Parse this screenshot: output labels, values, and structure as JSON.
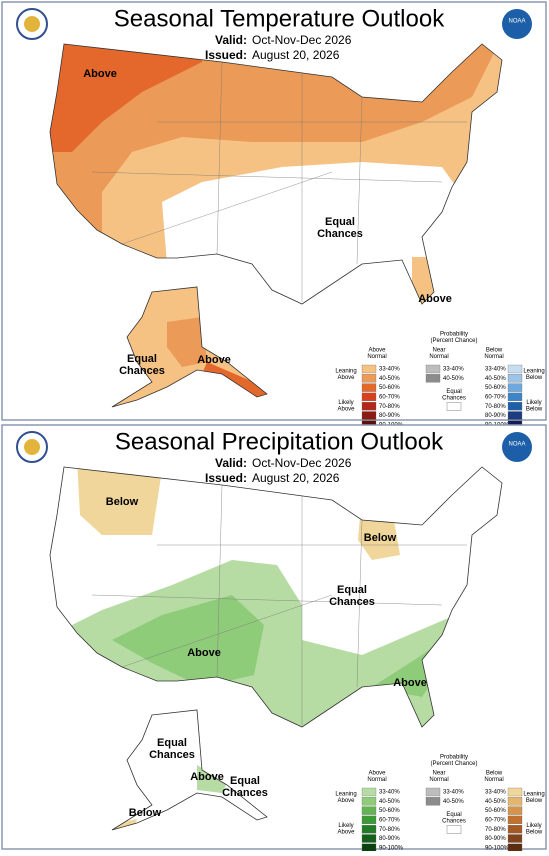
{
  "panels": [
    {
      "title": "Seasonal Temperature Outlook",
      "valid_label": "Valid:",
      "valid": "Oct-Nov-Dec 2026",
      "issued_label": "Issued:",
      "issued": "August 20, 2026",
      "logo_text": "NOAA",
      "map_labels": [
        [
          "Above"
        ],
        [
          "Equal",
          "Chances"
        ],
        [
          "Above"
        ],
        [
          "Equal",
          "Chances"
        ],
        [
          "Above"
        ]
      ],
      "legend": {
        "title": [
          "Probability",
          "(Percent Chance)"
        ],
        "above_header": [
          "Above",
          "Normal"
        ],
        "near_header": [
          "Near",
          "Normal"
        ],
        "below_header": [
          "Below",
          "Normal"
        ],
        "above_ranges": [
          "33-40%",
          "40-50%",
          "50-60%",
          "60-70%",
          "70-80%",
          "80-90%",
          "90-100%"
        ],
        "above_colors": [
          "#f6c283",
          "#eb9a57",
          "#e4682c",
          "#d8401f",
          "#b3261a",
          "#8a1a12",
          "#5c1009"
        ],
        "near_ranges": [
          "33-40%",
          "40-50%"
        ],
        "near_colors": [
          "#bdbdbd",
          "#8c8c8c"
        ],
        "below_ranges": [
          "33-40%",
          "40-50%",
          "50-60%",
          "60-70%",
          "70-80%",
          "80-90%",
          "90-100%"
        ],
        "below_colors": [
          "#c8dcf0",
          "#9dc3e6",
          "#6fa8dc",
          "#3d85c6",
          "#1f5fa8",
          "#1b3c80",
          "#141a5a"
        ],
        "leaning_above": [
          "Leaning",
          "Above"
        ],
        "likely_above": [
          "Likely",
          "Above"
        ],
        "equal_chances": [
          "Equal",
          "Chances"
        ],
        "leaning_below": [
          "Leaning",
          "Below"
        ],
        "likely_below": [
          "Likely",
          "Below"
        ]
      }
    },
    {
      "title": "Seasonal Precipitation Outlook",
      "valid_label": "Valid:",
      "valid": "Oct-Nov-Dec 2026",
      "issued_label": "Issued:",
      "issued": "August 20, 2026",
      "logo_text": "NOAA",
      "map_labels": [
        [
          "Below"
        ],
        [
          "Below"
        ],
        [
          "Equal",
          "Chances"
        ],
        [
          "Above"
        ],
        [
          "Above"
        ],
        [
          "Equal",
          "Chances"
        ],
        [
          "Above"
        ],
        [
          "Equal",
          "Chances"
        ],
        [
          "Below"
        ]
      ],
      "legend": {
        "title": [
          "Probability",
          "(Percent Chance)"
        ],
        "above_header": [
          "Above",
          "Normal"
        ],
        "near_header": [
          "Near",
          "Normal"
        ],
        "below_header": [
          "Below",
          "Normal"
        ],
        "above_ranges": [
          "33-40%",
          "40-50%",
          "50-60%",
          "60-70%",
          "70-80%",
          "80-90%",
          "90-100%"
        ],
        "above_colors": [
          "#b6dca4",
          "#8fcc7a",
          "#62b552",
          "#3c9b36",
          "#237d27",
          "#14601a",
          "#0b4011"
        ],
        "near_ranges": [
          "33-40%",
          "40-50%"
        ],
        "near_colors": [
          "#bdbdbd",
          "#8c8c8c"
        ],
        "below_ranges": [
          "33-40%",
          "40-50%",
          "50-60%",
          "60-70%",
          "70-80%",
          "80-90%",
          "90-100%"
        ],
        "below_colors": [
          "#f0d69a",
          "#e3b66e",
          "#d6944a",
          "#c2712e",
          "#a55a24",
          "#80431b",
          "#5b2e13"
        ],
        "leaning_above": [
          "Leaning",
          "Above"
        ],
        "likely_above": [
          "Likely",
          "Above"
        ],
        "equal_chances": [
          "Equal",
          "Chances"
        ],
        "leaning_below": [
          "Leaning",
          "Below"
        ],
        "likely_below": [
          "Likely",
          "Below"
        ]
      }
    }
  ]
}
